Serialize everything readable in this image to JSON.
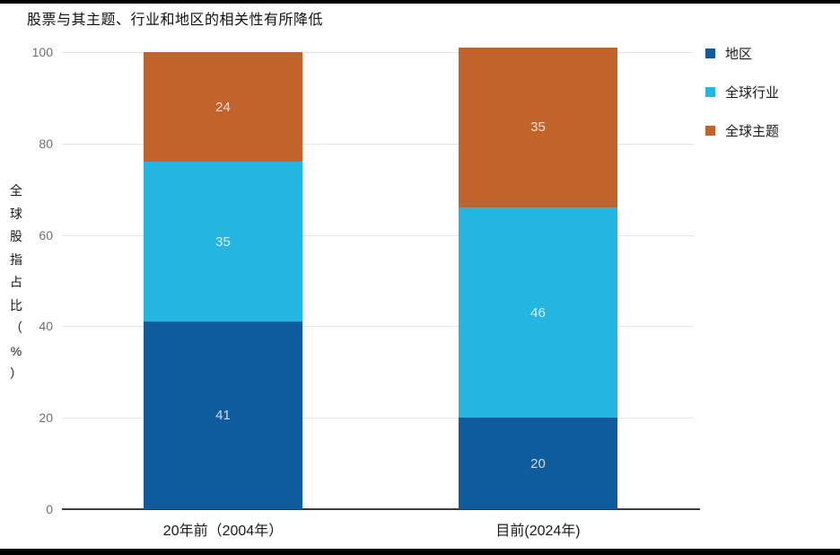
{
  "title": "股票与其主题、行业和地区的相关性有所降低",
  "frame": {
    "border_color": "#000000"
  },
  "chart_data": {
    "type": "bar",
    "stacked": true,
    "title": "股票与其主题、行业和地区的相关性有所降低",
    "ylabel": "全球股指占比（%）",
    "xlabel": "",
    "categories": [
      "20年前（2004年）",
      "目前(2024年)"
    ],
    "series": [
      {
        "name": "地区",
        "color": "#0e5c9b",
        "values": [
          41,
          20
        ]
      },
      {
        "name": "全球行业",
        "color": "#25b5e1",
        "values": [
          35,
          46
        ]
      },
      {
        "name": "全球主题",
        "color": "#c2632b",
        "values": [
          24,
          35
        ]
      }
    ],
    "ylim": [
      0,
      100
    ],
    "yticks": [
      0,
      20,
      40,
      60,
      80,
      100
    ],
    "grid": true,
    "legend_position": "top-right",
    "value_labels_shown": true,
    "value_label_color": "rgba(255,255,255,0.78)",
    "grid_color": "#e5e5e5",
    "axis_line_color": "#3d3d3d",
    "tick_label_color": "#6f6f6f"
  }
}
